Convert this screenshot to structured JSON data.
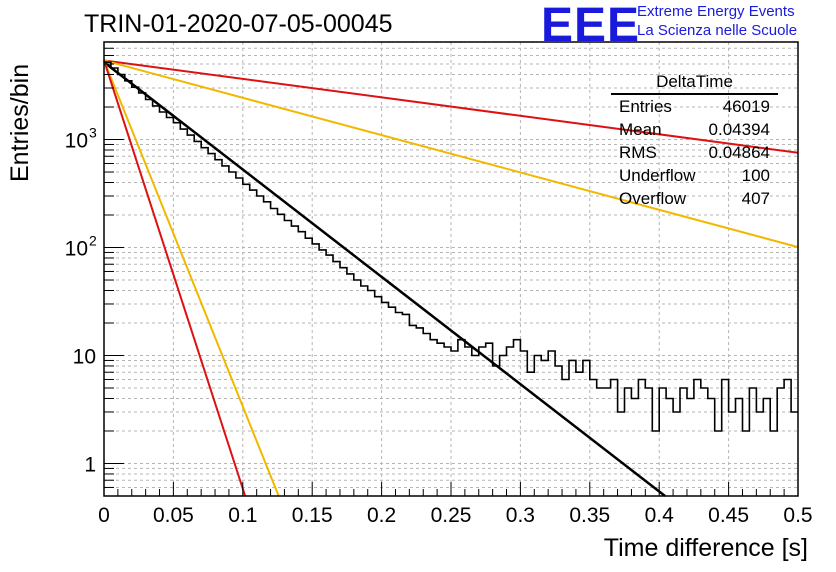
{
  "header": {
    "title": "TRIN-01-2020-07-05-00045",
    "logo_text": "EEE",
    "brand_line1": "Extreme Energy Events",
    "brand_line2": "La Scienza nelle Scuole",
    "logo_color": "#1a1adc"
  },
  "stats_box": {
    "name": "DeltaTime",
    "rows": [
      {
        "label": "Entries",
        "value": "46019"
      },
      {
        "label": "Mean",
        "value": "0.04394"
      },
      {
        "label": "RMS",
        "value": "0.04864"
      },
      {
        "label": "Underflow",
        "value": "100"
      },
      {
        "label": "Overflow",
        "value": "407"
      }
    ]
  },
  "chart_data": {
    "type": "histogram",
    "xlabel": "Time difference [s]",
    "ylabel": "Entries/bin",
    "xlim": [
      0,
      0.5
    ],
    "ylim": [
      0.5,
      8000
    ],
    "y_scale": "log",
    "grid": true,
    "x_ticks": [
      "0",
      "0.05",
      "0.1",
      "0.15",
      "0.2",
      "0.25",
      "0.3",
      "0.35",
      "0.4",
      "0.45",
      "0.5"
    ],
    "y_ticks": [
      {
        "value": 1,
        "label": "1"
      },
      {
        "value": 10,
        "label": "10"
      },
      {
        "value": 100,
        "label": "10",
        "exp": "2"
      },
      {
        "value": 1000,
        "label": "10",
        "exp": "3"
      }
    ],
    "bin_width": 0.005,
    "histogram_values": [
      5200,
      4600,
      4000,
      3500,
      3050,
      2700,
      2350,
      2050,
      1800,
      1600,
      1430,
      1250,
      1100,
      960,
      840,
      740,
      650,
      570,
      500,
      440,
      385,
      340,
      300,
      265,
      230,
      203,
      178,
      158,
      140,
      122,
      108,
      95,
      85,
      74,
      65,
      57,
      50,
      44,
      40,
      35,
      31,
      28,
      25,
      24,
      19,
      18,
      16,
      14,
      13,
      12,
      11,
      14,
      12,
      10,
      12,
      13,
      8,
      10,
      12,
      14,
      11,
      7,
      10,
      9,
      11,
      8,
      6,
      9,
      7,
      9,
      6,
      5,
      5,
      6,
      3,
      5,
      4,
      6,
      5,
      2,
      5,
      4,
      3,
      5,
      4,
      6,
      5,
      4,
      2,
      6,
      3,
      4,
      2,
      5,
      3,
      4,
      2,
      5,
      6,
      3
    ],
    "fits": [
      {
        "color": "#000000",
        "y0": 5200,
        "tau": 0.0437
      },
      {
        "color": "#dd1111",
        "y0": 5400,
        "tau": 0.254
      },
      {
        "color": "#f2b800",
        "y0": 5400,
        "tau": 0.1256
      },
      {
        "color": "#f2b800",
        "y0": 5400,
        "tau": 0.01355
      },
      {
        "color": "#dd1111",
        "y0": 5400,
        "tau": 0.01095
      }
    ]
  }
}
